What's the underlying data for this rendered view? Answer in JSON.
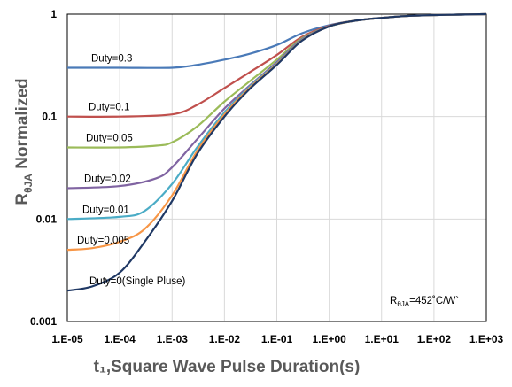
{
  "chart_data": {
    "type": "line",
    "title": "",
    "xlabel": "t₁,Square Wave Pulse Duration(s)",
    "ylabel_main": "R",
    "ylabel_sub": "θJA",
    "ylabel_rest": " Normalized",
    "x_scale": "log",
    "y_scale": "log",
    "xlim": [
      1e-05,
      1000
    ],
    "ylim": [
      0.001,
      1
    ],
    "x_ticks": [
      "1.E-05",
      "1.E-04",
      "1.E-03",
      "1.E-02",
      "1.E-01",
      "1.E+00",
      "1.E+01",
      "1.E+02",
      "1.E+03"
    ],
    "y_ticks": [
      "1",
      "0.1",
      "0.01",
      "0.001"
    ],
    "grid": true,
    "annotation": {
      "main": "R",
      "sub": "θJA",
      "rest": "=452˚C/W`"
    },
    "series": [
      {
        "name": "Duty=0.3",
        "color": "#4a7ab8",
        "points": [
          [
            1e-05,
            0.3
          ],
          [
            0.0001,
            0.3
          ],
          [
            0.001,
            0.3
          ],
          [
            0.003,
            0.32
          ],
          [
            0.01,
            0.36
          ],
          [
            0.03,
            0.41
          ],
          [
            0.1,
            0.5
          ],
          [
            0.3,
            0.65
          ],
          [
            1,
            0.78
          ],
          [
            3,
            0.86
          ],
          [
            10,
            0.92
          ],
          [
            30,
            0.96
          ],
          [
            100,
            0.98
          ],
          [
            1000,
            1.0
          ]
        ]
      },
      {
        "name": "Duty=0.1",
        "color": "#c0504d",
        "points": [
          [
            1e-05,
            0.1
          ],
          [
            0.0001,
            0.1
          ],
          [
            0.001,
            0.105
          ],
          [
            0.003,
            0.13
          ],
          [
            0.01,
            0.19
          ],
          [
            0.03,
            0.27
          ],
          [
            0.1,
            0.4
          ],
          [
            0.3,
            0.6
          ],
          [
            1,
            0.77
          ],
          [
            3,
            0.86
          ],
          [
            10,
            0.92
          ],
          [
            30,
            0.96
          ],
          [
            100,
            0.98
          ],
          [
            1000,
            1.0
          ]
        ]
      },
      {
        "name": "Duty=0.05",
        "color": "#9bbb59",
        "points": [
          [
            1e-05,
            0.05
          ],
          [
            0.0001,
            0.05
          ],
          [
            0.0005,
            0.052
          ],
          [
            0.001,
            0.056
          ],
          [
            0.003,
            0.08
          ],
          [
            0.01,
            0.14
          ],
          [
            0.03,
            0.22
          ],
          [
            0.1,
            0.36
          ],
          [
            0.3,
            0.58
          ],
          [
            1,
            0.76
          ],
          [
            3,
            0.86
          ],
          [
            10,
            0.92
          ],
          [
            30,
            0.96
          ],
          [
            100,
            0.98
          ],
          [
            1000,
            1.0
          ]
        ]
      },
      {
        "name": "Duty=0.02",
        "color": "#8064a2",
        "points": [
          [
            1e-05,
            0.02
          ],
          [
            0.0001,
            0.021
          ],
          [
            0.0005,
            0.025
          ],
          [
            0.001,
            0.032
          ],
          [
            0.003,
            0.06
          ],
          [
            0.01,
            0.12
          ],
          [
            0.03,
            0.2
          ],
          [
            0.1,
            0.34
          ],
          [
            0.3,
            0.57
          ],
          [
            1,
            0.76
          ],
          [
            3,
            0.86
          ],
          [
            10,
            0.92
          ],
          [
            30,
            0.96
          ],
          [
            100,
            0.98
          ],
          [
            1000,
            1.0
          ]
        ]
      },
      {
        "name": "Duty=0.01",
        "color": "#4bacc6",
        "points": [
          [
            1e-05,
            0.01
          ],
          [
            0.0001,
            0.0105
          ],
          [
            0.0003,
            0.012
          ],
          [
            0.001,
            0.022
          ],
          [
            0.003,
            0.05
          ],
          [
            0.01,
            0.11
          ],
          [
            0.03,
            0.195
          ],
          [
            0.1,
            0.33
          ],
          [
            0.3,
            0.56
          ],
          [
            1,
            0.76
          ],
          [
            3,
            0.86
          ],
          [
            10,
            0.92
          ],
          [
            30,
            0.96
          ],
          [
            100,
            0.98
          ],
          [
            1000,
            1.0
          ]
        ]
      },
      {
        "name": "Duty=0.005",
        "color": "#f79646",
        "points": [
          [
            1e-05,
            0.005
          ],
          [
            3e-05,
            0.0052
          ],
          [
            0.0001,
            0.006
          ],
          [
            0.0003,
            0.008
          ],
          [
            0.001,
            0.017
          ],
          [
            0.003,
            0.046
          ],
          [
            0.01,
            0.105
          ],
          [
            0.03,
            0.19
          ],
          [
            0.1,
            0.325
          ],
          [
            0.3,
            0.555
          ],
          [
            1,
            0.76
          ],
          [
            3,
            0.86
          ],
          [
            10,
            0.92
          ],
          [
            30,
            0.96
          ],
          [
            100,
            0.98
          ],
          [
            1000,
            1.0
          ]
        ]
      },
      {
        "name": "Duty=0(Single Pluse)",
        "color": "#1f3864",
        "points": [
          [
            1e-05,
            0.002
          ],
          [
            3e-05,
            0.0022
          ],
          [
            0.0001,
            0.003
          ],
          [
            0.0003,
            0.006
          ],
          [
            0.001,
            0.015
          ],
          [
            0.003,
            0.043
          ],
          [
            0.01,
            0.1
          ],
          [
            0.03,
            0.185
          ],
          [
            0.1,
            0.32
          ],
          [
            0.3,
            0.55
          ],
          [
            1,
            0.76
          ],
          [
            3,
            0.86
          ],
          [
            10,
            0.92
          ],
          [
            30,
            0.96
          ],
          [
            100,
            0.98
          ],
          [
            1000,
            1.0
          ]
        ]
      }
    ],
    "labels": [
      {
        "text": "Duty=0.3",
        "x": 1e-05,
        "y": 0.3
      },
      {
        "text": "Duty=0.1",
        "x": 1e-05,
        "y": 0.1
      },
      {
        "text": "Duty=0.05",
        "x": 1e-05,
        "y": 0.05
      },
      {
        "text": "Duty=0.02",
        "x": 1e-05,
        "y": 0.02
      },
      {
        "text": "Duty=0.01",
        "x": 1e-05,
        "y": 0.01
      },
      {
        "text": "Duty=0.005",
        "x": 1e-05,
        "y": 0.005
      },
      {
        "text": "Duty=0(Single Pluse)",
        "x": 1e-05,
        "y": 0.002
      }
    ]
  }
}
